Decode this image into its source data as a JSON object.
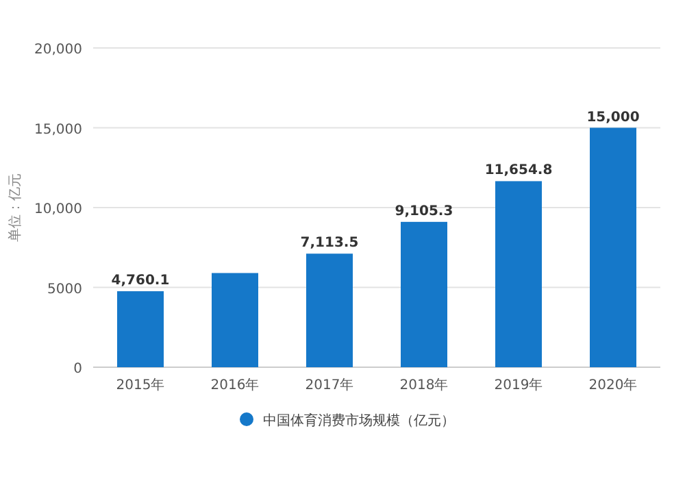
{
  "chart_data": {
    "type": "bar",
    "ylabel": "单位：亿元",
    "categories": [
      "2015年",
      "2016年",
      "2017年",
      "2018年",
      "2019年",
      "2020年"
    ],
    "series": [
      {
        "name": "中国体育消费市场规模（亿元）",
        "color": "#1578c9",
        "values": [
          4760.1,
          5900,
          7113.5,
          9105.3,
          11654.8,
          15000
        ],
        "value_labels": [
          "4,760.1",
          null,
          "7,113.5",
          "9,105.3",
          "11,654.8",
          "15,000"
        ]
      }
    ],
    "ylim": [
      0,
      20000
    ],
    "yticks": [
      0,
      5000,
      {
        "value": 10000,
        "label": "10,000"
      },
      {
        "value": 15000,
        "label": "15,000"
      },
      {
        "value": 20000,
        "label": "20,000"
      }
    ],
    "grid": "y",
    "legend": "bottom",
    "marker": "circle"
  }
}
